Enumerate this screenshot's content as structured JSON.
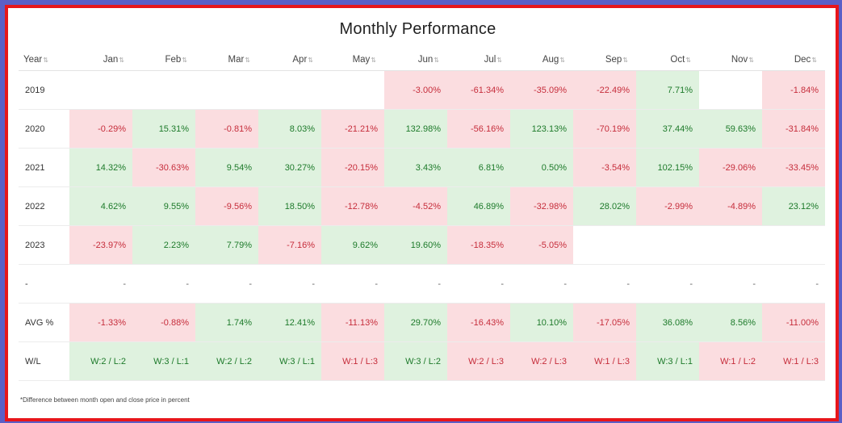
{
  "title": "Monthly Performance",
  "sort_glyph": "⇅",
  "columns": [
    "Year",
    "Jan",
    "Feb",
    "Mar",
    "Apr",
    "May",
    "Jun",
    "Jul",
    "Aug",
    "Sep",
    "Oct",
    "Nov",
    "Dec"
  ],
  "rows": [
    {
      "label": "2019",
      "cells": [
        [
          "",
          ""
        ],
        [
          "",
          ""
        ],
        [
          "",
          ""
        ],
        [
          "",
          ""
        ],
        [
          "",
          ""
        ],
        [
          "-3.00%",
          "neg"
        ],
        [
          "-61.34%",
          "neg"
        ],
        [
          "-35.09%",
          "neg"
        ],
        [
          "-22.49%",
          "neg"
        ],
        [
          "7.71%",
          "pos"
        ],
        [
          "",
          ""
        ],
        [
          "-1.84%",
          "neg"
        ]
      ]
    },
    {
      "label": "2020",
      "cells": [
        [
          "-0.29%",
          "neg"
        ],
        [
          "15.31%",
          "pos"
        ],
        [
          "-0.81%",
          "neg"
        ],
        [
          "8.03%",
          "pos"
        ],
        [
          "-21.21%",
          "neg"
        ],
        [
          "132.98%",
          "pos"
        ],
        [
          "-56.16%",
          "neg"
        ],
        [
          "123.13%",
          "pos"
        ],
        [
          "-70.19%",
          "neg"
        ],
        [
          "37.44%",
          "pos"
        ],
        [
          "59.63%",
          "pos"
        ],
        [
          "-31.84%",
          "neg"
        ]
      ]
    },
    {
      "label": "2021",
      "cells": [
        [
          "14.32%",
          "pos"
        ],
        [
          "-30.63%",
          "neg"
        ],
        [
          "9.54%",
          "pos"
        ],
        [
          "30.27%",
          "pos"
        ],
        [
          "-20.15%",
          "neg"
        ],
        [
          "3.43%",
          "pos"
        ],
        [
          "6.81%",
          "pos"
        ],
        [
          "0.50%",
          "pos"
        ],
        [
          "-3.54%",
          "neg"
        ],
        [
          "102.15%",
          "pos"
        ],
        [
          "-29.06%",
          "neg"
        ],
        [
          "-33.45%",
          "neg"
        ]
      ]
    },
    {
      "label": "2022",
      "cells": [
        [
          "4.62%",
          "pos"
        ],
        [
          "9.55%",
          "pos"
        ],
        [
          "-9.56%",
          "neg"
        ],
        [
          "18.50%",
          "pos"
        ],
        [
          "-12.78%",
          "neg"
        ],
        [
          "-4.52%",
          "neg"
        ],
        [
          "46.89%",
          "pos"
        ],
        [
          "-32.98%",
          "neg"
        ],
        [
          "28.02%",
          "pos"
        ],
        [
          "-2.99%",
          "neg"
        ],
        [
          "-4.89%",
          "neg"
        ],
        [
          "23.12%",
          "pos"
        ]
      ]
    },
    {
      "label": "2023",
      "cells": [
        [
          "-23.97%",
          "neg"
        ],
        [
          "2.23%",
          "pos"
        ],
        [
          "7.79%",
          "pos"
        ],
        [
          "-7.16%",
          "neg"
        ],
        [
          "9.62%",
          "pos"
        ],
        [
          "19.60%",
          "pos"
        ],
        [
          "-18.35%",
          "neg"
        ],
        [
          "-5.05%",
          "neg"
        ],
        [
          "",
          ""
        ],
        [
          "",
          ""
        ],
        [
          "",
          ""
        ],
        [
          "",
          ""
        ]
      ]
    },
    {
      "label": "-",
      "cells": [
        [
          "-",
          "dash"
        ],
        [
          "-",
          "dash"
        ],
        [
          "-",
          "dash"
        ],
        [
          "-",
          "dash"
        ],
        [
          "-",
          "dash"
        ],
        [
          "-",
          "dash"
        ],
        [
          "-",
          "dash"
        ],
        [
          "-",
          "dash"
        ],
        [
          "-",
          "dash"
        ],
        [
          "-",
          "dash"
        ],
        [
          "-",
          "dash"
        ],
        [
          "-",
          "dash"
        ]
      ]
    },
    {
      "label": "AVG %",
      "cells": [
        [
          "-1.33%",
          "neg"
        ],
        [
          "-0.88%",
          "neg"
        ],
        [
          "1.74%",
          "pos"
        ],
        [
          "12.41%",
          "pos"
        ],
        [
          "-11.13%",
          "neg"
        ],
        [
          "29.70%",
          "pos"
        ],
        [
          "-16.43%",
          "neg"
        ],
        [
          "10.10%",
          "pos"
        ],
        [
          "-17.05%",
          "neg"
        ],
        [
          "36.08%",
          "pos"
        ],
        [
          "8.56%",
          "pos"
        ],
        [
          "-11.00%",
          "neg"
        ]
      ]
    },
    {
      "label": "W/L",
      "cells": [
        [
          "W:2 / L:2",
          "pos wl"
        ],
        [
          "W:3 / L:1",
          "pos wl"
        ],
        [
          "W:2 / L:2",
          "pos wl"
        ],
        [
          "W:3 / L:1",
          "pos wl"
        ],
        [
          "W:1 / L:3",
          "neg wl"
        ],
        [
          "W:3 / L:2",
          "pos wl"
        ],
        [
          "W:2 / L:3",
          "neg wl"
        ],
        [
          "W:2 / L:3",
          "neg wl"
        ],
        [
          "W:1 / L:3",
          "neg wl"
        ],
        [
          "W:3 / L:1",
          "pos wl"
        ],
        [
          "W:1 / L:2",
          "neg wl"
        ],
        [
          "W:1 / L:3",
          "neg wl"
        ]
      ]
    }
  ],
  "footnote": "*Difference between month open and close price in percent",
  "colors": {
    "positive_bg": "#dff2df",
    "positive_text": "#1d7a2a",
    "negative_bg": "#fbdde0",
    "negative_text": "#c62d3b",
    "frame_outer": "#5b5fc7",
    "frame_inner": "#e8161b"
  }
}
